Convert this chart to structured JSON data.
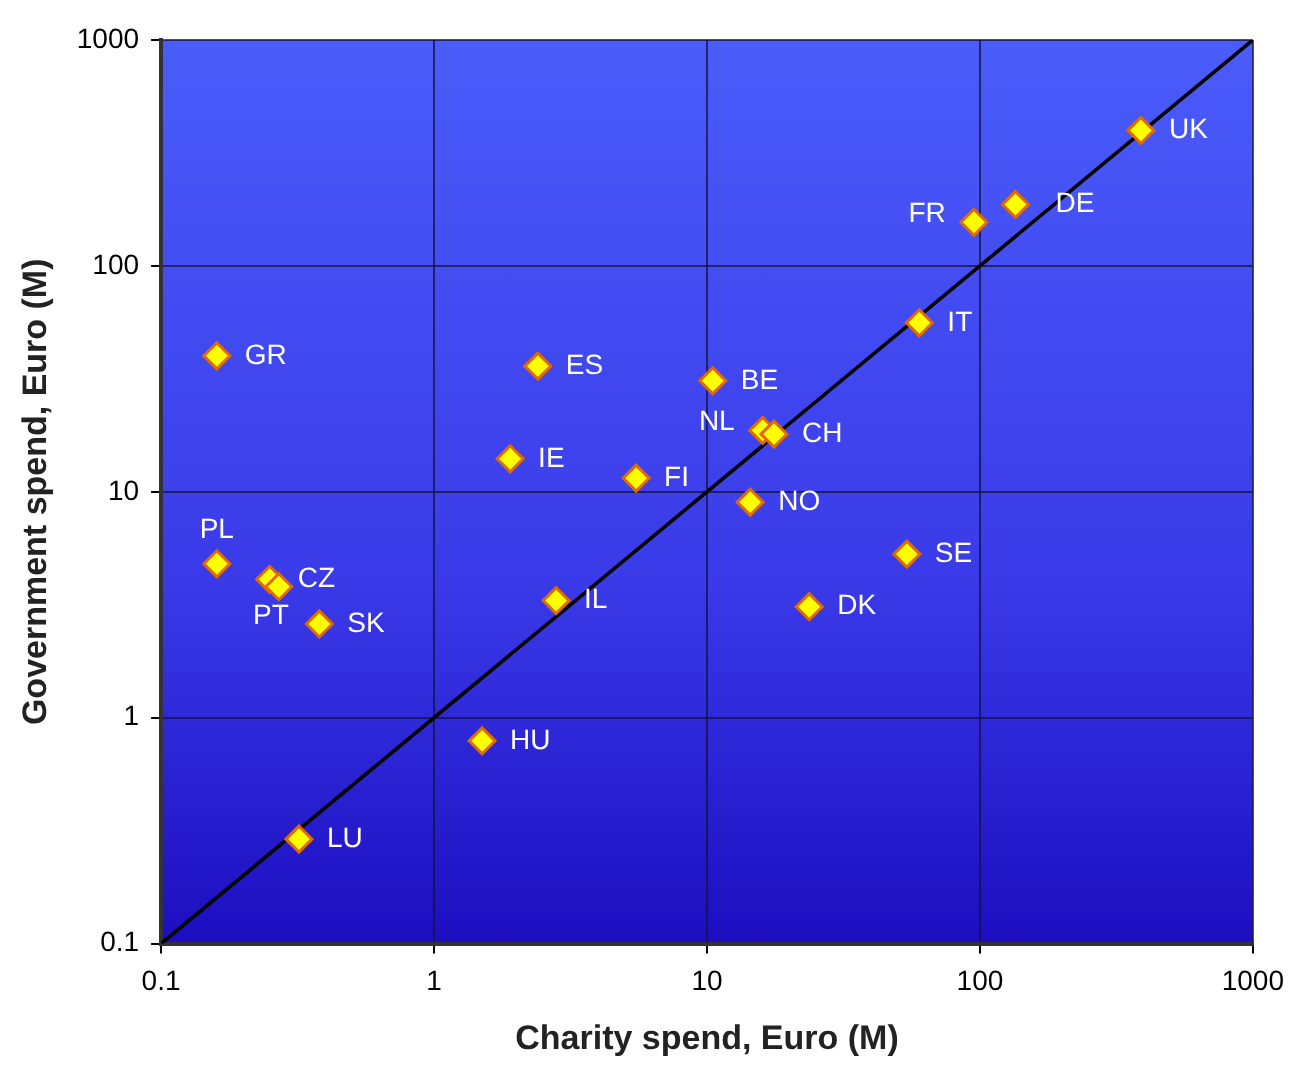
{
  "chart_data": {
    "type": "scatter",
    "xlabel": "Charity spend, Euro (M)",
    "ylabel": "Government spend, Euro (M)",
    "log": "xy",
    "grid": true,
    "legend": false,
    "xlim": [
      0.1,
      1000
    ],
    "ylim": [
      0.1,
      1000
    ],
    "xticks": [
      0.1,
      1,
      10,
      100,
      1000
    ],
    "yticks": [
      0.1,
      1,
      10,
      100,
      1000
    ],
    "series": [
      {
        "marker": "diamond",
        "color": "#ffff00",
        "x": [
          389,
          95,
          135,
          60,
          10.5,
          16,
          17.6,
          14.4,
          54,
          23.7,
          5.5,
          2.4,
          1.9,
          2.8,
          0.16,
          0.16,
          0.25,
          0.27,
          0.38,
          1.5,
          0.32
        ],
        "values": [
          398,
          156,
          187,
          56,
          31,
          18.7,
          18,
          9,
          5.3,
          3.1,
          11.5,
          36,
          14,
          3.3,
          40,
          4.8,
          4.1,
          3.8,
          2.6,
          0.79,
          0.29
        ]
      },
      {
        "type": "line",
        "marker": "none",
        "color": "#000000",
        "x": [
          0.1,
          1000
        ],
        "values": [
          0.1,
          1000
        ]
      }
    ],
    "annotations": [
      {
        "text": "UK",
        "x": 389,
        "y": 398
      },
      {
        "text": "FR",
        "x": 95,
        "y": 156
      },
      {
        "text": "DE",
        "x": 135,
        "y": 187
      },
      {
        "text": "IT",
        "x": 60,
        "y": 56
      },
      {
        "text": "BE",
        "x": 10.5,
        "y": 31
      },
      {
        "text": "NL",
        "x": 16,
        "y": 18.7
      },
      {
        "text": "CH",
        "x": 17.6,
        "y": 18
      },
      {
        "text": "NO",
        "x": 14.4,
        "y": 9
      },
      {
        "text": "SE",
        "x": 54,
        "y": 5.3
      },
      {
        "text": "DK",
        "x": 23.7,
        "y": 3.1
      },
      {
        "text": "FI",
        "x": 5.5,
        "y": 11.5
      },
      {
        "text": "ES",
        "x": 2.4,
        "y": 36
      },
      {
        "text": "IE",
        "x": 1.9,
        "y": 14
      },
      {
        "text": "IL",
        "x": 2.8,
        "y": 3.3
      },
      {
        "text": "GR",
        "x": 0.16,
        "y": 40
      },
      {
        "text": "PL",
        "x": 0.16,
        "y": 4.8
      },
      {
        "text": "CZ",
        "x": 0.25,
        "y": 4.1
      },
      {
        "text": "PT",
        "x": 0.27,
        "y": 3.8
      },
      {
        "text": "SK",
        "x": 0.38,
        "y": 2.6
      },
      {
        "text": "HU",
        "x": 1.5,
        "y": 0.79
      },
      {
        "text": "LU",
        "x": 0.32,
        "y": 0.29
      }
    ]
  }
}
